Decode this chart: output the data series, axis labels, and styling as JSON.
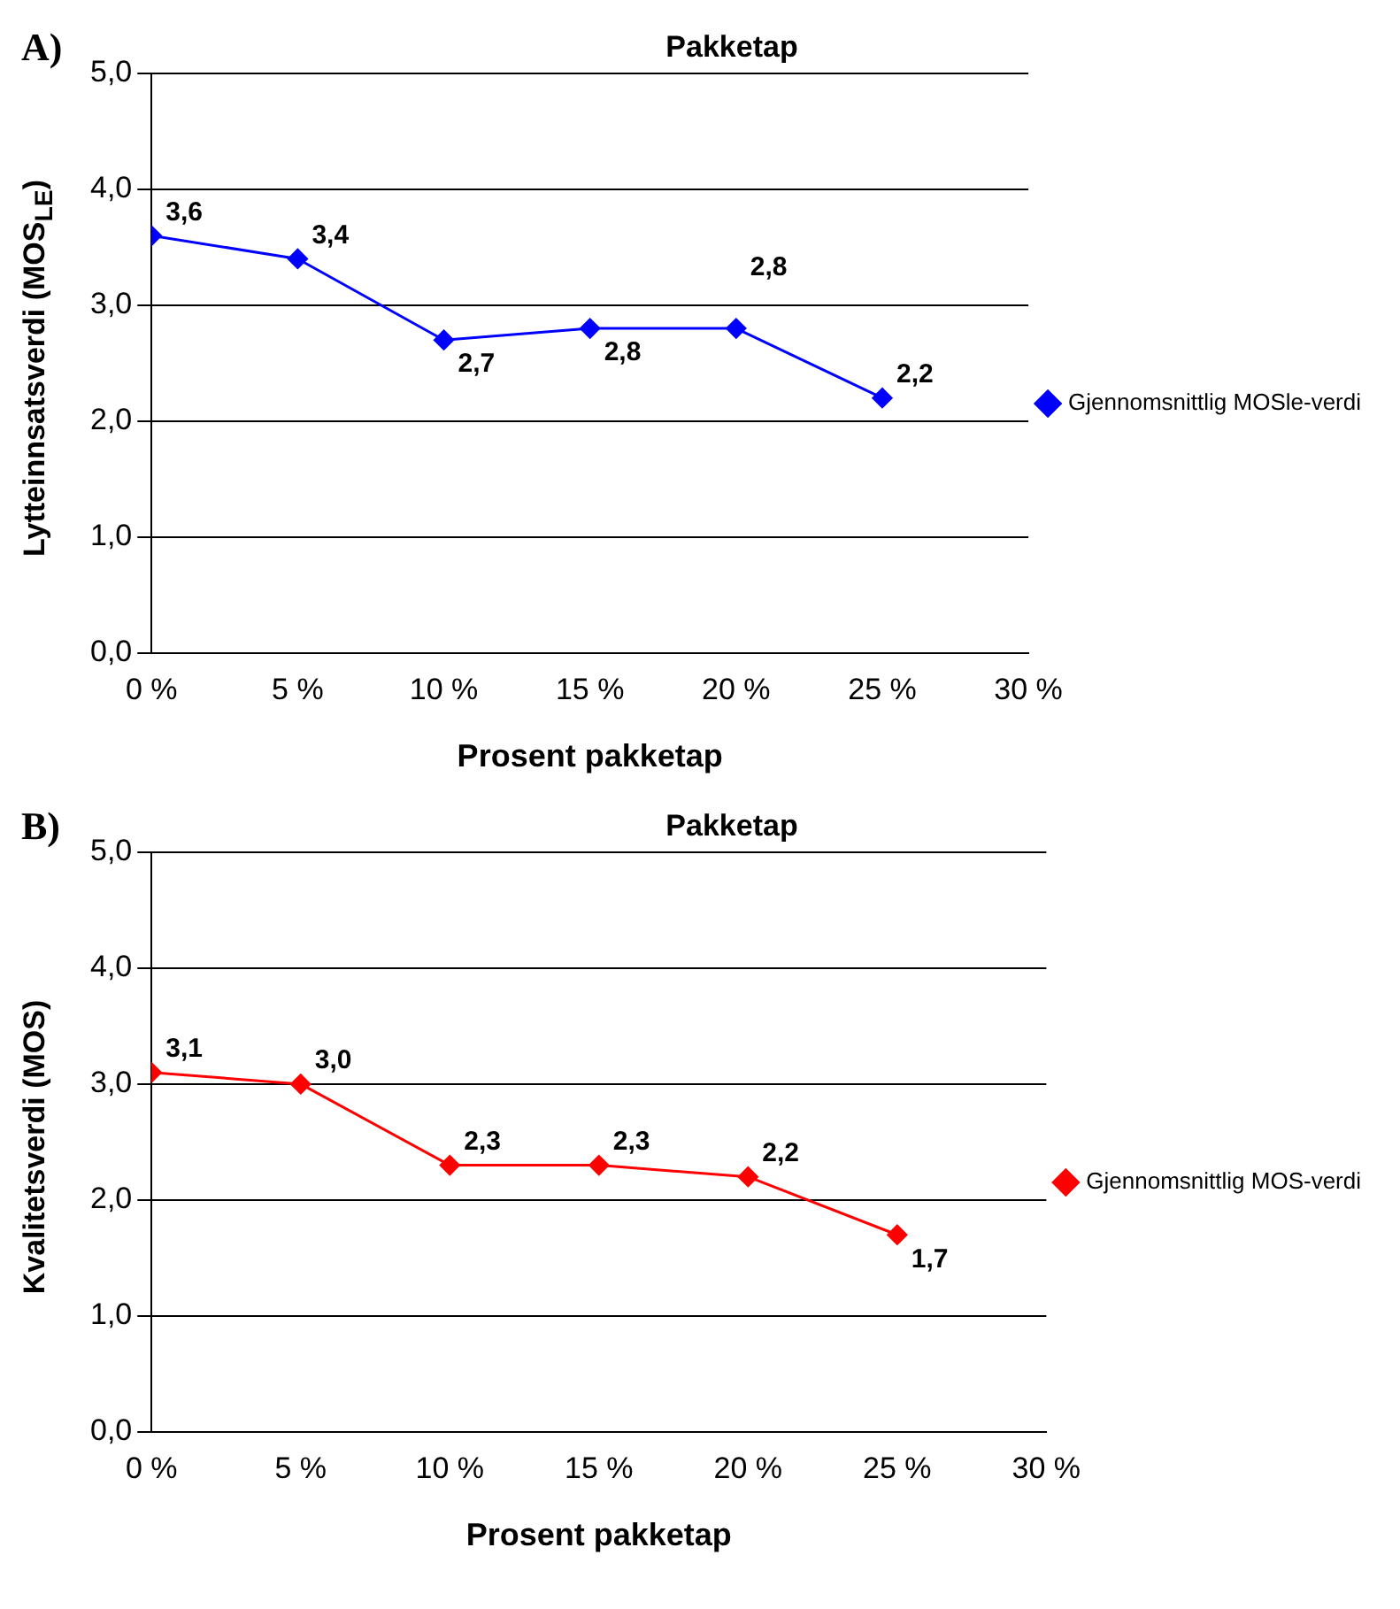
{
  "chart_data": [
    {
      "type": "line",
      "title": "Pakketap",
      "xlabel": "Prosent pakketap",
      "ylabel": "Lytteinnsatsverdi (MOS$_{LE}$)",
      "annotations": [
        "A)"
      ],
      "x": [
        0,
        5,
        10,
        15,
        20,
        25
      ],
      "xlim": [
        0,
        30
      ],
      "xticks": [
        {
          "value": 0,
          "label": "0 %"
        },
        {
          "value": 5,
          "label": "5 %"
        },
        {
          "value": 10,
          "label": "10 %"
        },
        {
          "value": 15,
          "label": "15 %"
        },
        {
          "value": 20,
          "label": "20 %"
        },
        {
          "value": 25,
          "label": "25 %"
        },
        {
          "value": 30,
          "label": "30 %"
        }
      ],
      "ylim": [
        0,
        5
      ],
      "yticks": [
        {
          "value": 0,
          "label": "0,0"
        },
        {
          "value": 1,
          "label": "1,0"
        },
        {
          "value": 2,
          "label": "2,0"
        },
        {
          "value": 3,
          "label": "3,0"
        },
        {
          "value": 4,
          "label": "4,0"
        },
        {
          "value": 5,
          "label": "5,0"
        }
      ],
      "grid": "y",
      "legend": "right",
      "marker": "diamond",
      "series": [
        {
          "name": "Gjennomsnittlig MOSle-verdi",
          "color": "#0000ff",
          "values": [
            3.6,
            3.4,
            2.7,
            2.8,
            2.8,
            2.2
          ],
          "value_labels": [
            "3,6",
            "3,4",
            "2,7",
            "2,8",
            "2,8",
            "2,2"
          ]
        }
      ]
    },
    {
      "type": "line",
      "title": "Pakketap",
      "xlabel": "Prosent pakketap",
      "ylabel": "Kvalitetsverdi (MOS)",
      "annotations": [
        "B)"
      ],
      "x": [
        0,
        5,
        10,
        15,
        20,
        25
      ],
      "xlim": [
        0,
        30
      ],
      "xticks": [
        {
          "value": 0,
          "label": "0 %"
        },
        {
          "value": 5,
          "label": "5 %"
        },
        {
          "value": 10,
          "label": "10 %"
        },
        {
          "value": 15,
          "label": "15 %"
        },
        {
          "value": 20,
          "label": "20 %"
        },
        {
          "value": 25,
          "label": "25 %"
        },
        {
          "value": 30,
          "label": "30 %"
        }
      ],
      "ylim": [
        0,
        5
      ],
      "yticks": [
        {
          "value": 0,
          "label": "0,0"
        },
        {
          "value": 1,
          "label": "1,0"
        },
        {
          "value": 2,
          "label": "2,0"
        },
        {
          "value": 3,
          "label": "3,0"
        },
        {
          "value": 4,
          "label": "4,0"
        },
        {
          "value": 5,
          "label": "5,0"
        }
      ],
      "grid": "y",
      "legend": "right",
      "marker": "diamond",
      "series": [
        {
          "name": "Gjennomsnittlig MOS-verdi",
          "color": "#ff0000",
          "values": [
            3.1,
            3.0,
            2.3,
            2.3,
            2.2,
            1.7
          ],
          "value_labels": [
            "3,1",
            "3,0",
            "2,3",
            "2,3",
            "2,2",
            "1,7"
          ]
        }
      ]
    }
  ]
}
